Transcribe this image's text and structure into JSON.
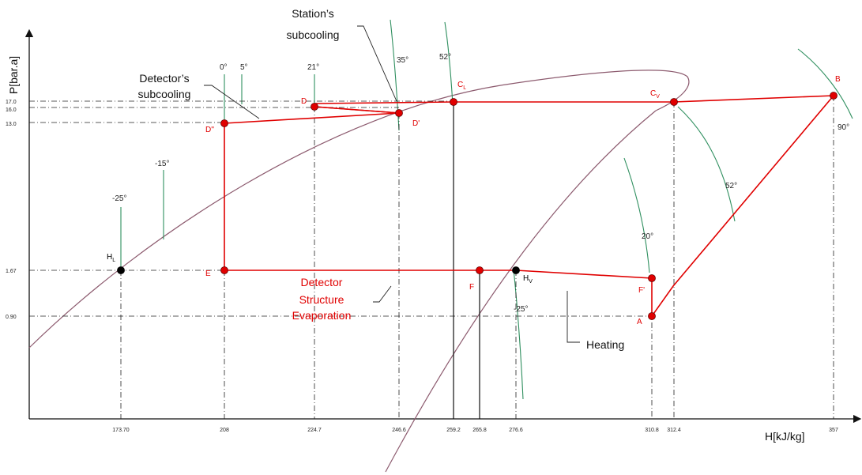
{
  "chart_data": {
    "type": "line",
    "xlabel": "H[kJ/kg]",
    "ylabel": "P[bar.a]",
    "x_ticks": [
      "173.70",
      "208",
      "224.7",
      "246.6",
      "259.2",
      "265.8",
      "276.6",
      "310.8",
      "312.4",
      "357"
    ],
    "y_ticks": [
      "17.0",
      "16.0",
      "13.0",
      "1.67",
      "0.90"
    ],
    "series": [
      {
        "color": "#e00000",
        "points": [
          {
            "label": "A",
            "h": 310.8,
            "p": 0.9
          },
          {
            "label": "B",
            "h": 357.0,
            "p": 17.7
          },
          {
            "label": "Cv",
            "h": 312.4,
            "p": 17.0
          },
          {
            "label": "CL",
            "h": 259.2,
            "p": 17.0
          },
          {
            "label": "D",
            "h": 224.7,
            "p": 16.5
          },
          {
            "label": "D'",
            "h": 246.6,
            "p": 16.0
          },
          {
            "label": "D''",
            "h": 208.0,
            "p": 13.0
          },
          {
            "label": "E",
            "h": 208.0,
            "p": 1.67
          },
          {
            "label": "F",
            "h": 265.8,
            "p": 1.67
          },
          {
            "label": "Hv",
            "h": 276.6,
            "p": 1.67
          },
          {
            "label": "F'",
            "h": 310.8,
            "p": 1.5
          },
          {
            "label": "A",
            "h": 310.8,
            "p": 0.9
          }
        ]
      }
    ],
    "labelled_points": [
      {
        "label": "HL",
        "h": 173.7,
        "p": 1.67
      }
    ],
    "isotherms": [
      "0°",
      "5°",
      "21°",
      "35°",
      "52°",
      "-15°",
      "-25°",
      "90°",
      "52°",
      "20°",
      "-25°"
    ],
    "annotations": [
      "Station’s subcooling",
      "Detector’s subcooling",
      "Detector Structure Evaporation",
      "Heating"
    ],
    "colors": {
      "cycle": "#e00000",
      "dome": "#8c5a6e",
      "isotherm": "#2f8f5f",
      "point_black": "#000000"
    }
  }
}
